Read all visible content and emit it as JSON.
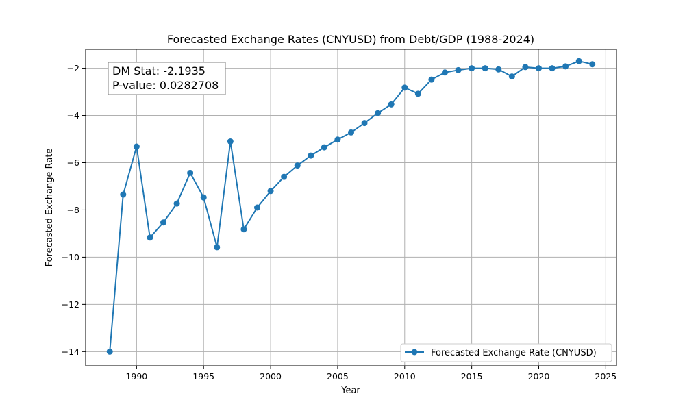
{
  "chart_data": {
    "type": "line",
    "title": "Forecasted Exchange Rates (CNYUSD) from Debt/GDP (1988-2024)",
    "xlabel": "Year",
    "ylabel": "Forecasted Exchange Rate",
    "xlim": [
      1986.2,
      2025.8
    ],
    "ylim": [
      -14.6,
      -1.2
    ],
    "xticks": [
      1990,
      1995,
      2000,
      2005,
      2010,
      2015,
      2020,
      2025
    ],
    "yticks": [
      -14,
      -12,
      -10,
      -8,
      -6,
      -4,
      -2
    ],
    "grid": true,
    "legend_position": "lower-right",
    "annotation": {
      "line1": "DM Stat: -2.1935",
      "line2": "P-value: 0.0282708",
      "position": "top-left"
    },
    "series": [
      {
        "name": "Forecasted Exchange Rate (CNYUSD)",
        "color": "#1f77b4",
        "marker": "circle",
        "x": [
          1988,
          1989,
          1990,
          1991,
          1992,
          1993,
          1994,
          1995,
          1996,
          1997,
          1998,
          1999,
          2000,
          2001,
          2002,
          2003,
          2004,
          2005,
          2006,
          2007,
          2008,
          2009,
          2010,
          2011,
          2012,
          2013,
          2014,
          2015,
          2016,
          2017,
          2018,
          2019,
          2020,
          2021,
          2022,
          2023,
          2024
        ],
        "values": [
          -14.0,
          -7.35,
          -5.32,
          -9.17,
          -8.53,
          -7.73,
          -6.43,
          -7.47,
          -9.58,
          -5.1,
          -8.82,
          -7.9,
          -7.2,
          -6.6,
          -6.12,
          -5.7,
          -5.35,
          -5.02,
          -4.72,
          -4.32,
          -3.9,
          -3.53,
          -2.82,
          -3.08,
          -2.48,
          -2.18,
          -2.08,
          -2.0,
          -2.0,
          -2.05,
          -2.35,
          -1.95,
          -2.0,
          -2.0,
          -1.92,
          -1.7,
          -1.83
        ]
      }
    ]
  }
}
